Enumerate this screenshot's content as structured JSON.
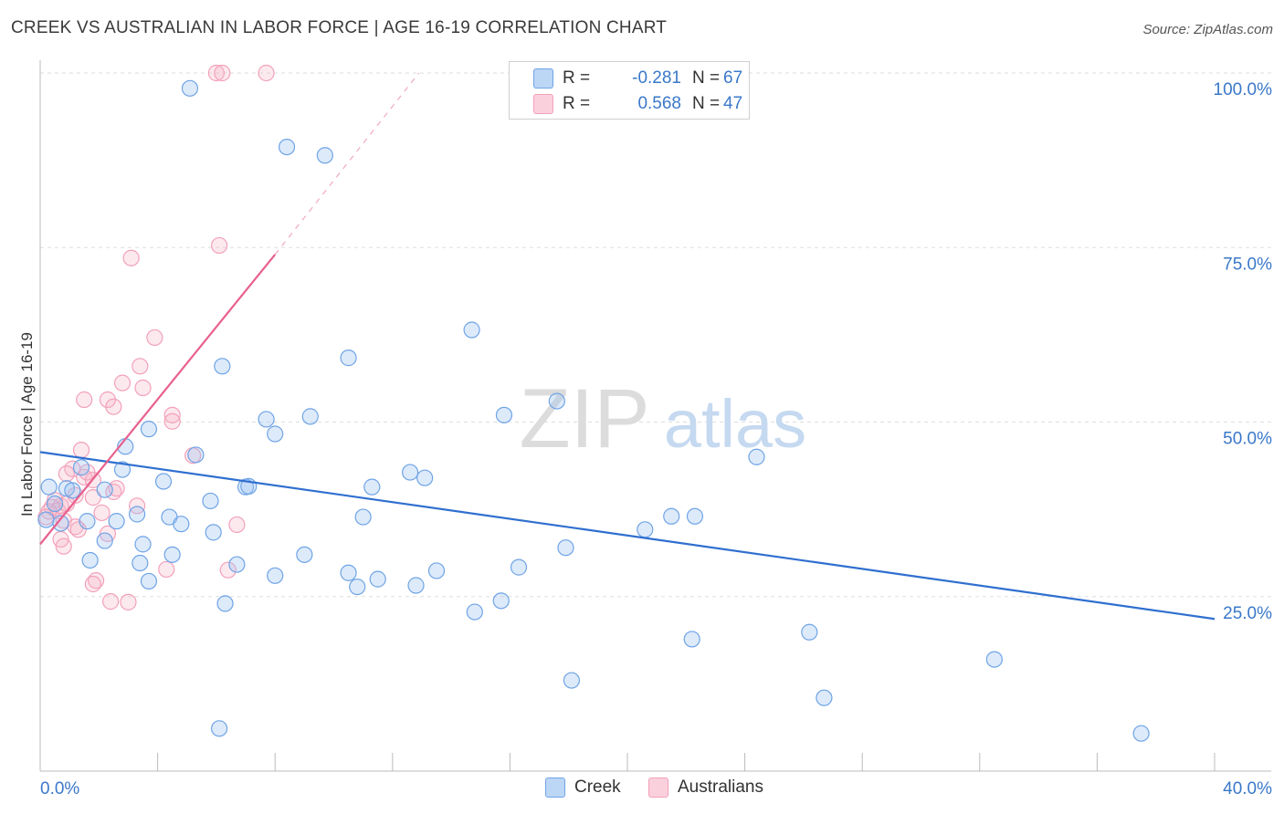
{
  "title": "CREEK VS AUSTRALIAN IN LABOR FORCE | AGE 16-19 CORRELATION CHART",
  "source": "Source: ZipAtlas.com",
  "watermark": {
    "zip": "ZIP",
    "atlas": "atlas"
  },
  "legend": {
    "rows": [
      {
        "r_label": "R = ",
        "r_value": "-0.281",
        "n_label": "N = ",
        "n_value": "67",
        "color": "#9dc3f0"
      },
      {
        "r_label": "R = ",
        "r_value": "0.568",
        "n_label": "N = ",
        "n_value": "47",
        "color": "#f6b5c8"
      }
    ]
  },
  "bottom_legend": [
    "Creek",
    "Australians"
  ],
  "chart_data": {
    "type": "scatter",
    "title": "CREEK VS AUSTRALIAN IN LABOR FORCE | AGE 16-19 CORRELATION CHART",
    "xlabel": "",
    "ylabel": "In Labor Force | Age 16-19",
    "xlim": [
      0,
      40
    ],
    "ylim": [
      0,
      100
    ],
    "x_tick_labels": [
      "0.0%",
      "40.0%"
    ],
    "y_ticks": [
      25,
      50,
      75,
      100
    ],
    "y_tick_labels": [
      "25.0%",
      "50.0%",
      "75.0%",
      "100.0%"
    ],
    "grid": true,
    "series": [
      {
        "name": "Creek",
        "color": "#6fa4e6",
        "line_color": "#2f6fcf",
        "trend": {
          "x": [
            0,
            40
          ],
          "y": [
            45.7,
            21.8
          ],
          "dashed_to": null
        },
        "points": [
          [
            5.1,
            97.8
          ],
          [
            8.4,
            89.4
          ],
          [
            9.7,
            88.2
          ],
          [
            14.7,
            63.2
          ],
          [
            10.5,
            59.2
          ],
          [
            6.2,
            58.0
          ],
          [
            17.6,
            53.0
          ],
          [
            15.8,
            51.0
          ],
          [
            9.2,
            50.8
          ],
          [
            7.7,
            50.4
          ],
          [
            3.7,
            49.0
          ],
          [
            8.0,
            48.3
          ],
          [
            2.9,
            46.5
          ],
          [
            5.3,
            45.3
          ],
          [
            24.4,
            45.0
          ],
          [
            1.4,
            43.5
          ],
          [
            2.8,
            43.2
          ],
          [
            12.6,
            42.8
          ],
          [
            13.1,
            42.0
          ],
          [
            4.2,
            41.5
          ],
          [
            11.3,
            40.7
          ],
          [
            0.9,
            40.5
          ],
          [
            7.0,
            40.7
          ],
          [
            1.1,
            40.2
          ],
          [
            0.3,
            40.7
          ],
          [
            7.1,
            40.8
          ],
          [
            2.2,
            40.3
          ],
          [
            5.8,
            38.7
          ],
          [
            0.5,
            38.3
          ],
          [
            22.3,
            36.5
          ],
          [
            3.3,
            36.8
          ],
          [
            11.0,
            36.4
          ],
          [
            4.4,
            36.4
          ],
          [
            1.6,
            35.8
          ],
          [
            21.5,
            36.5
          ],
          [
            0.2,
            36.0
          ],
          [
            2.6,
            35.8
          ],
          [
            0.7,
            35.5
          ],
          [
            4.8,
            35.4
          ],
          [
            20.6,
            34.6
          ],
          [
            5.9,
            34.2
          ],
          [
            2.2,
            33.0
          ],
          [
            3.5,
            32.5
          ],
          [
            17.9,
            32.0
          ],
          [
            9.0,
            31.0
          ],
          [
            4.5,
            31.0
          ],
          [
            1.7,
            30.2
          ],
          [
            3.4,
            29.8
          ],
          [
            6.7,
            29.6
          ],
          [
            16.3,
            29.2
          ],
          [
            13.5,
            28.7
          ],
          [
            10.5,
            28.4
          ],
          [
            8.0,
            28.0
          ],
          [
            11.5,
            27.5
          ],
          [
            10.8,
            26.4
          ],
          [
            12.8,
            26.6
          ],
          [
            15.7,
            24.4
          ],
          [
            6.3,
            24.0
          ],
          [
            3.7,
            27.2
          ],
          [
            14.8,
            22.8
          ],
          [
            26.2,
            19.9
          ],
          [
            22.2,
            18.9
          ],
          [
            32.5,
            16.0
          ],
          [
            18.1,
            13.0
          ],
          [
            6.1,
            6.1
          ],
          [
            37.5,
            5.4
          ],
          [
            26.7,
            10.5
          ]
        ]
      },
      {
        "name": "Australians",
        "color": "#f3a0ba",
        "line_color": "#e8608f",
        "trend": {
          "x": [
            0,
            8.0
          ],
          "y": [
            32.5,
            74.0
          ],
          "dashed_to": [
            12.9,
            100.0
          ]
        },
        "points": [
          [
            6.0,
            100.0
          ],
          [
            6.2,
            100.0
          ],
          [
            7.7,
            100.0
          ],
          [
            6.1,
            75.3
          ],
          [
            3.1,
            73.5
          ],
          [
            3.9,
            62.1
          ],
          [
            3.4,
            58.0
          ],
          [
            2.8,
            55.6
          ],
          [
            3.5,
            54.9
          ],
          [
            1.5,
            53.2
          ],
          [
            2.3,
            53.2
          ],
          [
            2.5,
            52.2
          ],
          [
            4.5,
            51.0
          ],
          [
            4.5,
            50.1
          ],
          [
            1.4,
            46.0
          ],
          [
            5.2,
            45.2
          ],
          [
            1.1,
            43.3
          ],
          [
            0.9,
            42.6
          ],
          [
            1.5,
            42.1
          ],
          [
            1.8,
            41.7
          ],
          [
            2.5,
            40.0
          ],
          [
            1.2,
            39.5
          ],
          [
            1.8,
            39.2
          ],
          [
            0.5,
            38.8
          ],
          [
            0.7,
            38.0
          ],
          [
            3.3,
            38.0
          ],
          [
            0.4,
            37.8
          ],
          [
            0.6,
            37.3
          ],
          [
            2.1,
            37.0
          ],
          [
            0.3,
            37.2
          ],
          [
            0.2,
            36.4
          ],
          [
            0.8,
            35.9
          ],
          [
            1.2,
            35.0
          ],
          [
            1.3,
            34.6
          ],
          [
            2.3,
            34.0
          ],
          [
            0.7,
            33.2
          ],
          [
            0.8,
            32.2
          ],
          [
            4.3,
            28.9
          ],
          [
            6.4,
            28.8
          ],
          [
            1.9,
            27.3
          ],
          [
            1.8,
            26.8
          ],
          [
            2.4,
            24.3
          ],
          [
            3.0,
            24.2
          ],
          [
            6.7,
            35.3
          ],
          [
            1.6,
            42.8
          ],
          [
            2.6,
            40.5
          ],
          [
            0.9,
            38.3
          ]
        ]
      }
    ]
  }
}
